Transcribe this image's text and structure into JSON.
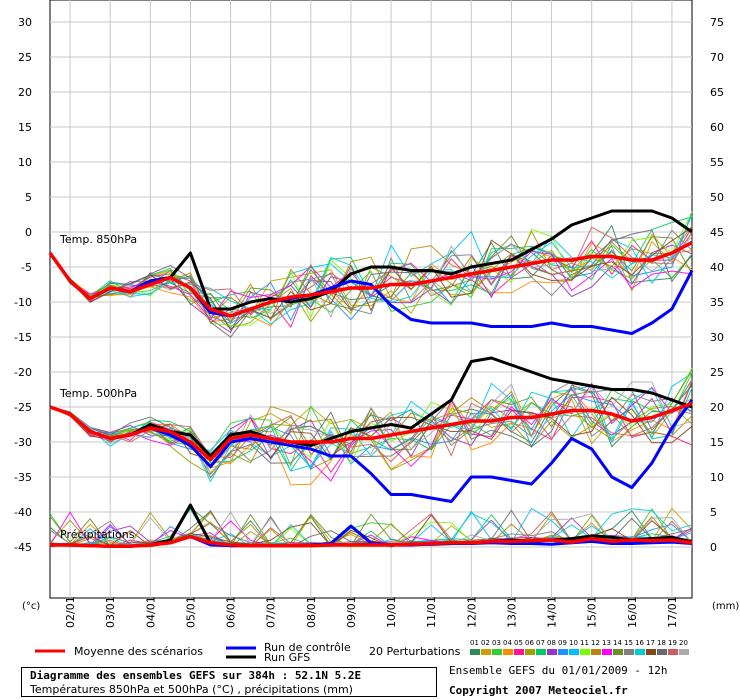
{
  "chart_data": {
    "type": "line",
    "left_axis": {
      "unit": "(°c)",
      "ticks": [
        30,
        25,
        20,
        15,
        10,
        5,
        0,
        -5,
        -10,
        -15,
        -20,
        -25,
        -30,
        -35,
        -40,
        -45
      ],
      "range": [
        -53,
        32
      ]
    },
    "right_axis": {
      "unit": "(mm)",
      "ticks": [
        75,
        70,
        65,
        60,
        55,
        50,
        45,
        40,
        35,
        30,
        25,
        20,
        15,
        10,
        5,
        0
      ]
    },
    "x_ticks": [
      "02/01",
      "03/01",
      "04/01",
      "05/01",
      "06/01",
      "07/01",
      "08/01",
      "09/01",
      "10/01",
      "11/01",
      "12/01",
      "13/01",
      "14/01",
      "15/01",
      "16/01",
      "17/01"
    ],
    "x_range_hours": [
      0,
      384
    ],
    "panel_labels": {
      "t850": "Temp. 850hPa",
      "t500": "Temp. 500hPa",
      "precip": "Précipitations"
    },
    "hours": [
      0,
      12,
      24,
      36,
      48,
      60,
      72,
      84,
      96,
      108,
      120,
      132,
      144,
      156,
      168,
      180,
      192,
      204,
      216,
      228,
      240,
      252,
      264,
      276,
      288,
      300,
      312,
      324,
      336,
      348,
      360,
      372,
      384
    ],
    "series": [
      {
        "name": "Moyenne des scénarios",
        "color": "#ff0000",
        "t850": [
          -3,
          -7,
          -9.5,
          -8,
          -8.5,
          -7.5,
          -6.5,
          -8,
          -11,
          -12,
          -11,
          -10,
          -9.3,
          -9,
          -8.5,
          -8,
          -8,
          -7.5,
          -7.5,
          -7,
          -6.5,
          -6,
          -5.5,
          -5,
          -4.5,
          -4,
          -4,
          -3.5,
          -3.5,
          -4,
          -4,
          -3,
          -1.5
        ],
        "t500": [
          -25,
          -26,
          -28.5,
          -29.5,
          -29,
          -28,
          -28.5,
          -30,
          -32.5,
          -29.5,
          -29,
          -29.5,
          -30,
          -30,
          -30,
          -29.5,
          -29.5,
          -29,
          -28.5,
          -28,
          -27.5,
          -27,
          -27,
          -26.5,
          -26.5,
          -26,
          -25.5,
          -25.5,
          -26,
          -27,
          -26.5,
          -25.5,
          -24.5
        ],
        "precip": [
          0.3,
          0.3,
          0.2,
          0.1,
          0.1,
          0.3,
          0.6,
          1.5,
          0.6,
          0.3,
          0.2,
          0.2,
          0.2,
          0.2,
          0.3,
          0.3,
          0.3,
          0.3,
          0.4,
          0.5,
          0.6,
          0.6,
          0.8,
          0.8,
          0.9,
          1,
          0.7,
          1.2,
          0.8,
          1,
          0.9,
          1,
          0.6
        ]
      },
      {
        "name": "Run de contrôle",
        "color": "#0000ff",
        "t850": [
          -3,
          -7,
          -9.5,
          -8,
          -8.5,
          -7,
          -6.5,
          -8,
          -11.5,
          -12,
          -11,
          -10,
          -9.5,
          -9,
          -8,
          -7,
          -7.5,
          -10.5,
          -12.5,
          -13,
          -13,
          -13,
          -13.5,
          -13.5,
          -13.5,
          -13,
          -13.5,
          -13.5,
          -14,
          -14.5,
          -13,
          -11,
          -5.5
        ],
        "t500": [
          -25,
          -26,
          -28.5,
          -29.5,
          -29,
          -28,
          -29,
          -30.5,
          -33.5,
          -30,
          -29.5,
          -30,
          -30.5,
          -31,
          -32,
          -32,
          -34.5,
          -37.5,
          -37.5,
          -38,
          -38.5,
          -35,
          -35,
          -35.5,
          -36,
          -33,
          -29.5,
          -31,
          -35,
          -36.5,
          -33,
          -28,
          -24
        ],
        "precip": [
          0.3,
          0.3,
          0.2,
          0.1,
          0.1,
          0.3,
          0.6,
          1.5,
          0.3,
          0.2,
          0.2,
          0.2,
          0.2,
          0.3,
          0.5,
          3,
          0.6,
          0.3,
          0.3,
          0.4,
          0.5,
          0.5,
          0.6,
          0.5,
          0.5,
          0.4,
          0.6,
          0.8,
          0.5,
          0.5,
          0.6,
          0.7,
          0.5
        ]
      },
      {
        "name": "Run GFS",
        "color": "#000000",
        "t850": [
          -3,
          -7,
          -9.5,
          -8,
          -8.5,
          -7,
          -6.5,
          -3,
          -11,
          -11,
          -10,
          -9.5,
          -10,
          -9.5,
          -8.5,
          -6,
          -5,
          -5,
          -5.5,
          -5.5,
          -6,
          -5,
          -4.5,
          -4,
          -2.5,
          -1,
          1,
          2,
          3,
          3,
          3,
          2,
          0
        ],
        "t500": [
          -25,
          -26,
          -28.5,
          -29.5,
          -29,
          -27.5,
          -28.5,
          -29,
          -32,
          -29,
          -28.5,
          -29.5,
          -30,
          -30.5,
          -29.5,
          -28.5,
          -28,
          -27.5,
          -28,
          -26,
          -24,
          -18.5,
          -18,
          -19,
          -20,
          -21,
          -21.5,
          -22,
          -22.5,
          -22.5,
          -23,
          -24,
          -25
        ],
        "precip": [
          0.3,
          0.3,
          0.2,
          0.1,
          0.1,
          0.3,
          1,
          6,
          0.5,
          0.2,
          0.2,
          0.2,
          0.2,
          0.2,
          0.3,
          0.3,
          0.4,
          0.3,
          0.3,
          0.5,
          0.6,
          0.5,
          0.8,
          1,
          0.8,
          1,
          1.2,
          1.6,
          1.4,
          1,
          1.2,
          1.4,
          0.7
        ]
      }
    ],
    "perturbations": {
      "label": "20 Perturbations",
      "members": [
        "01",
        "02",
        "03",
        "04",
        "05",
        "06",
        "07",
        "08",
        "09",
        "10",
        "11",
        "12",
        "13",
        "14",
        "15",
        "16",
        "17",
        "18",
        "19",
        "20"
      ],
      "colors": [
        "#2e8b57",
        "#c8a000",
        "#32cd32",
        "#ff8c00",
        "#ff1493",
        "#a0a000",
        "#00cc66",
        "#9932cc",
        "#1e90ff",
        "#00bfff",
        "#7cfc00",
        "#b8860b",
        "#ff00ff",
        "#6b8e23",
        "#808080",
        "#00ced1",
        "#8b4513",
        "#696969",
        "#cd5c5c",
        "#a9a9a9"
      ]
    }
  },
  "legend": {
    "mean_label": "Moyenne des scénarios",
    "control_label": "Run de contrôle",
    "gfs_label": "Run GFS",
    "perturb_label": "20 Perturbations"
  },
  "info": {
    "title": "Diagramme des ensembles GEFS sur 384h : 52.1N 5.2E",
    "subtitle": "Températures 850hPa et 500hPa (°C) , précipitations (mm)",
    "ensemble": "Ensemble GEFS du 01/01/2009 - 12h",
    "copyright": "Copyright 2007 Meteociel.fr"
  }
}
